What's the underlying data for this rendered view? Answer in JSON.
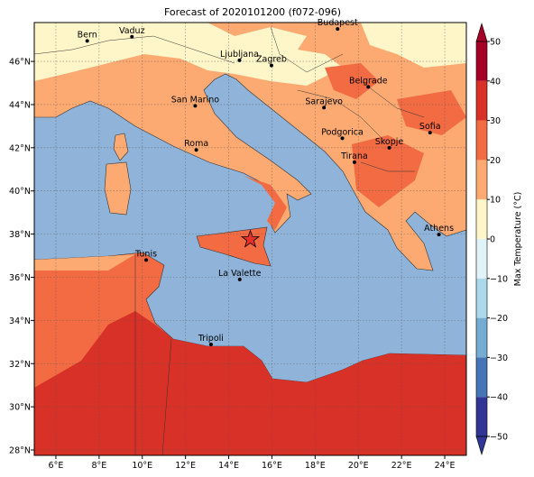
{
  "map": {
    "title": "Forecast of 2020101200 (f072-096)",
    "xlim": [
      5,
      25
    ],
    "ylim": [
      27.75,
      47.8
    ],
    "xticks": [
      {
        "value": 6,
        "label": "6°E"
      },
      {
        "value": 8,
        "label": "8°E"
      },
      {
        "value": 10,
        "label": "10°E"
      },
      {
        "value": 12,
        "label": "12°E"
      },
      {
        "value": 14,
        "label": "14°E"
      },
      {
        "value": 16,
        "label": "16°E"
      },
      {
        "value": 18,
        "label": "18°E"
      },
      {
        "value": 20,
        "label": "20°E"
      },
      {
        "value": 22,
        "label": "22°E"
      },
      {
        "value": 24,
        "label": "24°E"
      }
    ],
    "yticks": [
      {
        "value": 28,
        "label": "28°N"
      },
      {
        "value": 30,
        "label": "30°N"
      },
      {
        "value": 32,
        "label": "32°N"
      },
      {
        "value": 34,
        "label": "34°N"
      },
      {
        "value": 36,
        "label": "36°N"
      },
      {
        "value": 38,
        "label": "38°N"
      },
      {
        "value": 40,
        "label": "40°N"
      },
      {
        "value": 42,
        "label": "42°N"
      },
      {
        "value": 44,
        "label": "44°N"
      },
      {
        "value": 46,
        "label": "46°N"
      }
    ],
    "grid": true,
    "cities": [
      {
        "label": "Bern",
        "lon": 7.45,
        "lat": 46.95
      },
      {
        "label": "Vaduz",
        "lon": 9.52,
        "lat": 47.14
      },
      {
        "label": "Budapest",
        "lon": 19.04,
        "lat": 47.5
      },
      {
        "label": "Ljubljana",
        "lon": 14.5,
        "lat": 46.05
      },
      {
        "label": "Zagreb",
        "lon": 15.98,
        "lat": 45.81
      },
      {
        "label": "Belgrade",
        "lon": 20.46,
        "lat": 44.82
      },
      {
        "label": "Sarajevo",
        "lon": 18.41,
        "lat": 43.86
      },
      {
        "label": "San Marino",
        "lon": 12.45,
        "lat": 43.94
      },
      {
        "label": "Sofia",
        "lon": 23.32,
        "lat": 42.7
      },
      {
        "label": "Podgorica",
        "lon": 19.26,
        "lat": 42.44
      },
      {
        "label": "Skopje",
        "lon": 21.43,
        "lat": 42.0
      },
      {
        "label": "Roma",
        "lon": 12.5,
        "lat": 41.9
      },
      {
        "label": "Tirana",
        "lon": 19.82,
        "lat": 41.33
      },
      {
        "label": "Athens",
        "lon": 23.73,
        "lat": 37.98
      },
      {
        "label": "Tunis",
        "lon": 10.18,
        "lat": 36.8
      },
      {
        "label": "La Valette",
        "lon": 14.51,
        "lat": 35.9
      },
      {
        "label": "Tripoli",
        "lon": 13.18,
        "lat": 32.89
      }
    ],
    "marker": {
      "lon": 15.0,
      "lat": 37.75
    },
    "colorbar": {
      "label": "Max Temperature (°C)",
      "ticks": [
        {
          "value": -50,
          "label": "−50"
        },
        {
          "value": -40,
          "label": "−40"
        },
        {
          "value": -30,
          "label": "−30"
        },
        {
          "value": -20,
          "label": "−20"
        },
        {
          "value": -10,
          "label": "−10"
        },
        0,
        10,
        20,
        30,
        40,
        50
      ],
      "colors": [
        "#313695",
        "#4575b4",
        "#74add1",
        "#abd9e9",
        "#e0f3f8",
        "#fef6c9",
        "#fcaa72",
        "#f26b43",
        "#d83127",
        "#a50026"
      ]
    }
  }
}
